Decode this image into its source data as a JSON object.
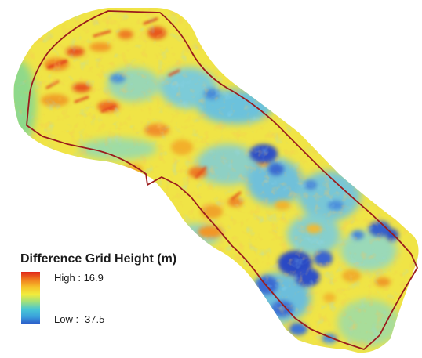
{
  "legend": {
    "title": "Difference Grid Height (m)",
    "high_label": "High : 16.9",
    "low_label": "Low : -37.5",
    "high_value": 16.9,
    "low_value": -37.5,
    "unit": "m",
    "ramp_colors": [
      "#e0261b",
      "#f07a1e",
      "#f6c12a",
      "#f2ec3c",
      "#9fe07c",
      "#48c6d4",
      "#3aa0dc",
      "#2a56c8"
    ]
  },
  "map": {
    "boundary_color": "#9b1c1c",
    "background_color": "#ffffff"
  }
}
